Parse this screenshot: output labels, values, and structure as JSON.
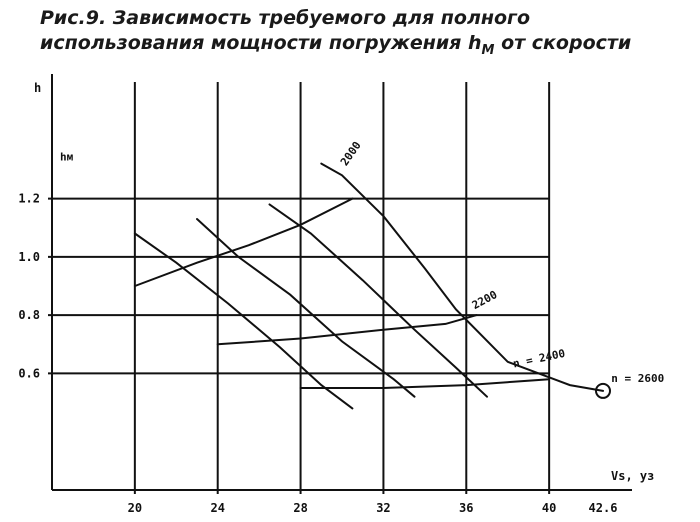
{
  "figure": {
    "title_line1": "Рис.9. Зависимость требуемого для полного",
    "title_line2_main": "использования мощности погружения h",
    "title_line2_sub": "М",
    "title_line2_end": " от скорости"
  },
  "chart_data": {
    "type": "line",
    "title": "Рис.9. Зависимость требуемого для полного использования мощности погружения hМ от скорости",
    "ylabel": "h",
    "xlabel": "Vs, уз",
    "xlim": [
      16,
      44
    ],
    "ylim": [
      0.2,
      1.6
    ],
    "grid": true,
    "x_ticks": [
      "20",
      "24",
      "28",
      "32",
      "36",
      "40",
      "42.6"
    ],
    "y_ticks": [
      "0.6",
      "0.8",
      "1.0",
      "1.2"
    ],
    "annotations": [
      "hм",
      "2000",
      "2200",
      "n = 2400",
      "n = 2600"
    ],
    "series": [
      {
        "name": "",
        "x": [
          20.0,
          22.0,
          24.5,
          27.0,
          29.0,
          30.5
        ],
        "y": [
          1.08,
          0.98,
          0.84,
          0.69,
          0.56,
          0.48
        ]
      },
      {
        "name": "",
        "x": [
          23.0,
          25.0,
          27.5,
          30.0,
          32.5,
          33.5
        ],
        "y": [
          1.13,
          1.0,
          0.87,
          0.71,
          0.58,
          0.52
        ]
      },
      {
        "name": "",
        "x": [
          26.5,
          28.5,
          31.0,
          33.5,
          35.5,
          37.0
        ],
        "y": [
          1.18,
          1.08,
          0.92,
          0.75,
          0.62,
          0.52
        ]
      },
      {
        "name": "",
        "x": [
          29.0,
          30.0,
          32.0,
          34.0,
          35.5,
          38.0,
          41.0,
          42.6
        ],
        "y": [
          1.32,
          1.28,
          1.14,
          0.96,
          0.82,
          0.64,
          0.56,
          0.54
        ]
      },
      {
        "name": "",
        "x": [
          20.0,
          23.0,
          25.5,
          28.0,
          30.5
        ],
        "y": [
          0.9,
          0.98,
          1.04,
          1.11,
          1.2
        ]
      },
      {
        "name": "",
        "x": [
          24.0,
          28.0,
          32.0,
          35.0,
          36.5
        ],
        "y": [
          0.7,
          0.72,
          0.75,
          0.77,
          0.8
        ]
      },
      {
        "name": "",
        "x": [
          28.0,
          32.0,
          36.0,
          40.0
        ],
        "y": [
          0.55,
          0.55,
          0.56,
          0.58
        ]
      }
    ]
  }
}
